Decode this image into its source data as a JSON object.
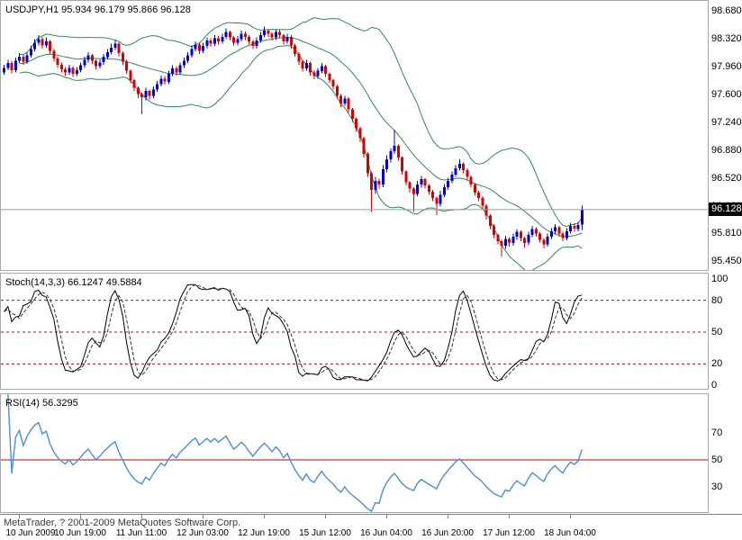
{
  "window": {
    "app": "MetaTrader",
    "symbol": "USDJPY",
    "timeframe": "H1"
  },
  "panels": {
    "main": {
      "label": "USDJPY,H1 95.934 96.179 95.866 96.128",
      "current_price": "96.128"
    },
    "stoch": {
      "label": "Stoch(14,3,3) 66.1247 49.5884"
    },
    "rsi": {
      "label": "RSI(14) 56.3295"
    }
  },
  "footer": {
    "copyright": "MetaTrader, ? 2001-2009 MetaQuotes Software Corp."
  },
  "colors": {
    "background": "#ffffff",
    "bull": "#0000CD",
    "bear": "#D60000",
    "bands": "#2E8B57",
    "stoch_main": "#000000",
    "stoch_signal": "#333333",
    "rsi": "#4A90D9",
    "level": "#CC0000",
    "price_line": "#9A9A9A",
    "price_box_bg": "#000000",
    "price_box_text": "#ffffff",
    "axis_text": "#000000"
  },
  "chart_data": [
    {
      "type": "candlestick",
      "title": "USDJPY,H1",
      "current_bar": {
        "open": 95.934,
        "high": 96.179,
        "low": 95.866,
        "close": 96.128
      },
      "y_axis": {
        "min": 95.36,
        "max": 98.8,
        "ticks": [
          {
            "v": 98.68,
            "t": "98.680"
          },
          {
            "v": 98.32,
            "t": "98.320"
          },
          {
            "v": 97.96,
            "t": "97.960"
          },
          {
            "v": 97.6,
            "t": "97.600"
          },
          {
            "v": 97.24,
            "t": "97.240"
          },
          {
            "v": 96.88,
            "t": "96.880"
          },
          {
            "v": 96.52,
            "t": "96.520"
          },
          {
            "v": 96.16,
            "t": "96.160"
          },
          {
            "v": 95.81,
            "t": "95.810"
          },
          {
            "v": 95.45,
            "t": "95.450"
          }
        ]
      },
      "x_axis": {
        "labels": [
          {
            "i": 4,
            "t": "10 Jun 2009"
          },
          {
            "i": 20,
            "t": "10 Jun 19:00"
          },
          {
            "i": 36,
            "t": "11 Jun 11:00"
          },
          {
            "i": 52,
            "t": "12 Jun 03:00"
          },
          {
            "i": 68,
            "t": "12 Jun 19:00"
          },
          {
            "i": 84,
            "t": "15 Jun 12:00"
          },
          {
            "i": 100,
            "t": "16 Jun 04:00"
          },
          {
            "i": 116,
            "t": "16 Jun 20:00"
          },
          {
            "i": 132,
            "t": "17 Jun 12:00"
          },
          {
            "i": 148,
            "t": "18 Jun 04:00"
          }
        ]
      },
      "overlays": [
        {
          "name": "Bollinger Bands",
          "period": 20,
          "deviation": 2
        }
      ],
      "candles": [
        [
          97.9,
          98.0,
          97.87,
          97.96
        ],
        [
          97.96,
          98.06,
          97.93,
          98.02
        ],
        [
          98.02,
          98.05,
          97.89,
          97.93
        ],
        [
          97.93,
          98.09,
          97.9,
          98.05
        ],
        [
          98.05,
          98.15,
          98.02,
          98.1
        ],
        [
          98.1,
          98.13,
          98.0,
          98.04
        ],
        [
          98.04,
          98.16,
          98.01,
          98.12
        ],
        [
          98.12,
          98.24,
          98.09,
          98.2
        ],
        [
          98.2,
          98.33,
          98.17,
          98.28
        ],
        [
          98.28,
          98.38,
          98.25,
          98.33
        ],
        [
          98.33,
          98.36,
          98.21,
          98.25
        ],
        [
          98.25,
          98.35,
          98.22,
          98.3
        ],
        [
          98.3,
          98.32,
          98.14,
          98.18
        ],
        [
          98.18,
          98.2,
          98.04,
          98.08
        ],
        [
          98.08,
          98.11,
          97.96,
          98.0
        ],
        [
          98.0,
          98.03,
          97.9,
          97.94
        ],
        [
          97.94,
          97.97,
          97.85,
          97.9
        ],
        [
          97.9,
          98.0,
          97.87,
          97.96
        ],
        [
          97.96,
          97.98,
          97.84,
          97.88
        ],
        [
          97.88,
          97.97,
          97.85,
          97.93
        ],
        [
          97.93,
          98.03,
          97.9,
          97.99
        ],
        [
          97.99,
          98.1,
          97.96,
          98.06
        ],
        [
          98.06,
          98.16,
          98.03,
          98.12
        ],
        [
          98.12,
          98.14,
          98.01,
          98.05
        ],
        [
          98.05,
          98.07,
          97.94,
          97.98
        ],
        [
          97.98,
          98.07,
          97.95,
          98.03
        ],
        [
          98.03,
          98.14,
          98.0,
          98.1
        ],
        [
          98.1,
          98.2,
          98.07,
          98.16
        ],
        [
          98.16,
          98.27,
          98.13,
          98.22
        ],
        [
          98.22,
          98.32,
          98.19,
          98.27
        ],
        [
          98.27,
          98.29,
          98.11,
          98.15
        ],
        [
          98.15,
          98.17,
          98.0,
          98.04
        ],
        [
          98.04,
          98.06,
          97.88,
          97.92
        ],
        [
          97.92,
          97.94,
          97.76,
          97.8
        ],
        [
          97.8,
          97.82,
          97.66,
          97.7
        ],
        [
          97.7,
          97.72,
          97.57,
          97.62
        ],
        [
          97.62,
          97.64,
          97.36,
          97.58
        ],
        [
          97.58,
          97.7,
          97.54,
          97.66
        ],
        [
          97.66,
          97.68,
          97.55,
          97.6
        ],
        [
          97.6,
          97.72,
          97.57,
          97.68
        ],
        [
          97.68,
          97.79,
          97.65,
          97.75
        ],
        [
          97.75,
          97.86,
          97.72,
          97.82
        ],
        [
          97.82,
          97.85,
          97.74,
          97.78
        ],
        [
          97.78,
          97.92,
          97.75,
          97.88
        ],
        [
          97.88,
          97.99,
          97.85,
          97.95
        ],
        [
          97.95,
          97.98,
          97.86,
          97.9
        ],
        [
          97.9,
          98.03,
          97.87,
          97.99
        ],
        [
          97.99,
          98.09,
          97.96,
          98.05
        ],
        [
          98.05,
          98.16,
          98.02,
          98.12
        ],
        [
          98.12,
          98.25,
          98.09,
          98.2
        ],
        [
          98.2,
          98.3,
          98.17,
          98.26
        ],
        [
          98.26,
          98.28,
          98.14,
          98.18
        ],
        [
          98.18,
          98.28,
          98.15,
          98.24
        ],
        [
          98.24,
          98.35,
          98.21,
          98.31
        ],
        [
          98.31,
          98.34,
          98.23,
          98.27
        ],
        [
          98.27,
          98.38,
          98.24,
          98.34
        ],
        [
          98.34,
          98.37,
          98.26,
          98.3
        ],
        [
          98.3,
          98.4,
          98.27,
          98.36
        ],
        [
          98.36,
          98.47,
          98.33,
          98.42
        ],
        [
          98.42,
          98.44,
          98.31,
          98.35
        ],
        [
          98.35,
          98.37,
          98.24,
          98.28
        ],
        [
          98.28,
          98.37,
          98.25,
          98.33
        ],
        [
          98.33,
          98.44,
          98.3,
          98.4
        ],
        [
          98.4,
          98.43,
          98.32,
          98.36
        ],
        [
          98.36,
          98.38,
          98.26,
          98.3
        ],
        [
          98.3,
          98.32,
          98.2,
          98.24
        ],
        [
          98.24,
          98.35,
          98.21,
          98.31
        ],
        [
          98.31,
          98.42,
          98.28,
          98.38
        ],
        [
          98.38,
          98.49,
          98.35,
          98.44
        ],
        [
          98.44,
          98.46,
          98.36,
          98.4
        ],
        [
          98.4,
          98.42,
          98.31,
          98.35
        ],
        [
          98.35,
          98.46,
          98.32,
          98.42
        ],
        [
          98.42,
          98.45,
          98.34,
          98.38
        ],
        [
          98.38,
          98.4,
          98.26,
          98.3
        ],
        [
          98.3,
          98.4,
          98.27,
          98.36
        ],
        [
          98.36,
          98.38,
          98.21,
          98.25
        ],
        [
          98.25,
          98.27,
          98.1,
          98.14
        ],
        [
          98.14,
          98.16,
          98.0,
          98.04
        ],
        [
          98.04,
          98.06,
          97.91,
          97.95
        ],
        [
          97.95,
          98.06,
          97.92,
          98.02
        ],
        [
          98.02,
          98.04,
          97.86,
          97.9
        ],
        [
          97.9,
          97.93,
          97.81,
          97.85
        ],
        [
          97.85,
          97.96,
          97.82,
          97.92
        ],
        [
          97.92,
          98.02,
          97.89,
          97.98
        ],
        [
          97.98,
          98.0,
          97.84,
          97.88
        ],
        [
          97.88,
          97.9,
          97.76,
          97.8
        ],
        [
          97.8,
          97.82,
          97.68,
          97.72
        ],
        [
          97.72,
          97.74,
          97.56,
          97.6
        ],
        [
          97.6,
          97.62,
          97.45,
          97.5
        ],
        [
          97.5,
          97.6,
          97.47,
          97.56
        ],
        [
          97.56,
          97.58,
          97.38,
          97.42
        ],
        [
          97.42,
          97.44,
          97.26,
          97.3
        ],
        [
          97.3,
          97.32,
          97.13,
          97.18
        ],
        [
          97.18,
          97.2,
          97.0,
          97.05
        ],
        [
          97.05,
          97.07,
          96.8,
          96.85
        ],
        [
          96.85,
          96.87,
          96.55,
          96.6
        ],
        [
          96.6,
          96.62,
          96.1,
          96.38
        ],
        [
          96.38,
          96.55,
          96.33,
          96.5
        ],
        [
          96.5,
          96.53,
          96.4,
          96.45
        ],
        [
          96.45,
          96.7,
          96.42,
          96.65
        ],
        [
          96.65,
          96.83,
          96.61,
          96.78
        ],
        [
          96.78,
          96.92,
          96.74,
          96.88
        ],
        [
          96.88,
          97.16,
          96.85,
          96.95
        ],
        [
          96.95,
          96.97,
          96.76,
          96.8
        ],
        [
          96.8,
          96.82,
          96.58,
          96.62
        ],
        [
          96.62,
          96.64,
          96.44,
          96.48
        ],
        [
          96.48,
          96.5,
          96.35,
          96.4
        ],
        [
          96.4,
          96.42,
          96.1,
          96.33
        ],
        [
          96.33,
          96.5,
          96.3,
          96.45
        ],
        [
          96.45,
          96.56,
          96.41,
          96.52
        ],
        [
          96.52,
          96.54,
          96.4,
          96.44
        ],
        [
          96.44,
          96.46,
          96.32,
          96.36
        ],
        [
          96.36,
          96.38,
          96.24,
          96.28
        ],
        [
          96.28,
          96.3,
          96.06,
          96.2
        ],
        [
          96.2,
          96.37,
          96.17,
          96.32
        ],
        [
          96.32,
          96.46,
          96.29,
          96.42
        ],
        [
          96.42,
          96.54,
          96.38,
          96.5
        ],
        [
          96.5,
          96.62,
          96.47,
          96.58
        ],
        [
          96.58,
          96.7,
          96.55,
          96.66
        ],
        [
          96.66,
          96.78,
          96.63,
          96.72
        ],
        [
          96.72,
          96.74,
          96.6,
          96.64
        ],
        [
          96.64,
          96.66,
          96.51,
          96.55
        ],
        [
          96.55,
          96.57,
          96.41,
          96.45
        ],
        [
          96.45,
          96.47,
          96.31,
          96.35
        ],
        [
          96.35,
          96.37,
          96.24,
          96.28
        ],
        [
          96.28,
          96.3,
          96.14,
          96.18
        ],
        [
          96.18,
          96.2,
          96.0,
          96.05
        ],
        [
          96.05,
          96.07,
          95.88,
          95.92
        ],
        [
          95.92,
          95.94,
          95.76,
          95.8
        ],
        [
          95.8,
          95.82,
          95.68,
          95.72
        ],
        [
          95.72,
          95.74,
          95.52,
          95.66
        ],
        [
          95.66,
          95.79,
          95.62,
          95.75
        ],
        [
          95.75,
          95.77,
          95.65,
          95.7
        ],
        [
          95.7,
          95.82,
          95.66,
          95.78
        ],
        [
          95.78,
          95.88,
          95.74,
          95.84
        ],
        [
          95.84,
          95.86,
          95.72,
          95.76
        ],
        [
          95.76,
          95.78,
          95.64,
          95.7
        ],
        [
          95.7,
          95.84,
          95.67,
          95.8
        ],
        [
          95.8,
          95.92,
          95.77,
          95.88
        ],
        [
          95.88,
          95.9,
          95.78,
          95.82
        ],
        [
          95.82,
          95.84,
          95.7,
          95.74
        ],
        [
          95.74,
          95.76,
          95.63,
          95.68
        ],
        [
          95.68,
          95.82,
          95.65,
          95.78
        ],
        [
          95.78,
          95.89,
          95.75,
          95.85
        ],
        [
          95.85,
          95.94,
          95.81,
          95.9
        ],
        [
          95.9,
          95.92,
          95.78,
          95.82
        ],
        [
          95.82,
          95.84,
          95.72,
          95.76
        ],
        [
          95.76,
          95.89,
          95.73,
          95.85
        ],
        [
          95.85,
          95.96,
          95.82,
          95.92
        ],
        [
          95.92,
          95.95,
          95.84,
          95.88
        ],
        [
          95.88,
          95.97,
          95.85,
          95.93
        ],
        [
          95.934,
          96.179,
          95.866,
          96.128
        ]
      ]
    },
    {
      "type": "line",
      "name": "Stochastic Oscillator",
      "params": "14,3,3",
      "current": [
        66.1247,
        49.5884
      ],
      "range": [
        0,
        100
      ],
      "levels": [
        80,
        50,
        20
      ],
      "y_ticks": [
        {
          "v": 100,
          "t": "100"
        },
        {
          "v": 80,
          "t": "80"
        },
        {
          "v": 50,
          "t": "50"
        },
        {
          "v": 20,
          "t": "20"
        },
        {
          "v": 0,
          "t": "0"
        }
      ],
      "derived_from": "candles"
    },
    {
      "type": "line",
      "name": "RSI",
      "params": "14",
      "current": 56.3295,
      "range": [
        12,
        96
      ],
      "level": 50,
      "y_ticks": [
        {
          "v": 70,
          "t": "70"
        },
        {
          "v": 50,
          "t": "50"
        },
        {
          "v": 30,
          "t": "30"
        }
      ],
      "derived_from": "candles"
    }
  ]
}
